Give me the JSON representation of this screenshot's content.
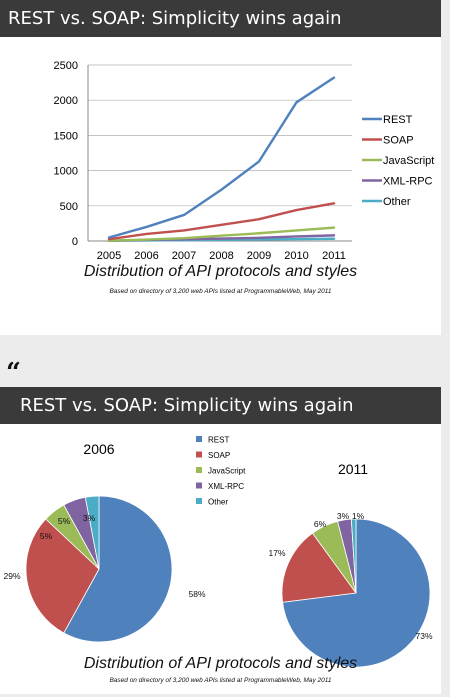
{
  "chart_data": [
    {
      "type": "line",
      "title": "REST vs. SOAP: Simplicity wins again",
      "caption": "Distribution of API protocols and styles",
      "subcaption": "Based on directory of 3,200 web APIs listed at ProgrammableWeb, May 2011",
      "x": [
        "2005",
        "2006",
        "2007",
        "2008",
        "2009",
        "2010",
        "2011"
      ],
      "ylim": [
        0,
        2500
      ],
      "yticks": [
        "0",
        "500",
        "1000",
        "1500",
        "2000",
        "2500"
      ],
      "grid": true,
      "legend": "right",
      "series": [
        {
          "name": "REST",
          "color": "#4f81bd",
          "values": [
            50,
            200,
            370,
            730,
            1130,
            1970,
            2320
          ]
        },
        {
          "name": "SOAP",
          "color": "#c0504d",
          "values": [
            25,
            100,
            150,
            230,
            310,
            440,
            535
          ]
        },
        {
          "name": "JavaScript",
          "color": "#9bbb59",
          "values": [
            5,
            20,
            40,
            75,
            110,
            150,
            190
          ]
        },
        {
          "name": "XML-RPC",
          "color": "#8064a2",
          "values": [
            5,
            15,
            25,
            35,
            45,
            65,
            80
          ]
        },
        {
          "name": "Other",
          "color": "#4bacc6",
          "values": [
            2,
            8,
            12,
            18,
            22,
            28,
            32
          ]
        }
      ]
    },
    {
      "type": "pie",
      "title": "REST vs. SOAP: Simplicity wins again",
      "caption": "Distribution of API protocols and styles",
      "subcaption": "Based on directory of 3,200 web APIs listed at ProgrammableWeb, May 2011",
      "legend": [
        "REST",
        "SOAP",
        "JavaScript",
        "XML-RPC",
        "Other"
      ],
      "colors": [
        "#4f81bd",
        "#c0504d",
        "#9bbb59",
        "#8064a2",
        "#4bacc6"
      ],
      "pies": [
        {
          "title": "2006",
          "values": [
            58,
            29,
            5,
            5,
            3
          ],
          "labels": [
            "58%",
            "29%",
            "5%",
            "5%",
            "3%"
          ]
        },
        {
          "title": "2011",
          "values": [
            73,
            17,
            6,
            3,
            1
          ],
          "labels": [
            "73%",
            "17%",
            "6%",
            "3%",
            "1%"
          ]
        }
      ]
    }
  ],
  "quote_mark": "“"
}
